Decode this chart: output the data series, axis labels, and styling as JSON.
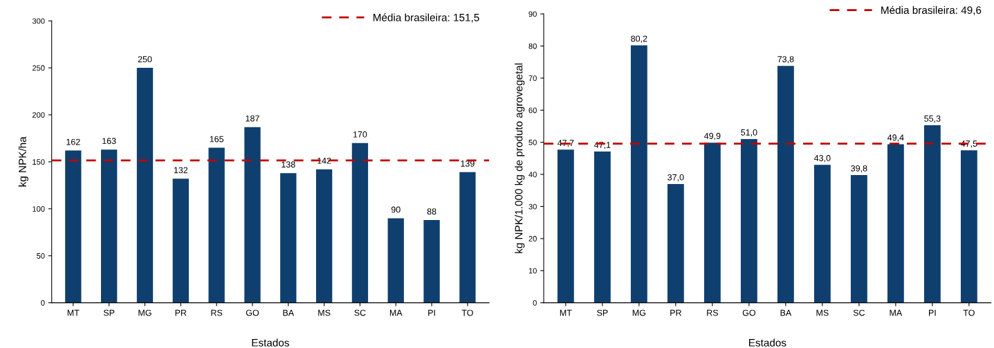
{
  "chart_data": [
    {
      "type": "bar",
      "xlabel": "Estados",
      "ylabel": "kg NPK/ha",
      "categories": [
        "MT",
        "SP",
        "MG",
        "PR",
        "RS",
        "GO",
        "BA",
        "MS",
        "SC",
        "MA",
        "PI",
        "TO"
      ],
      "values": [
        162,
        163,
        250,
        132,
        165,
        187,
        138,
        142,
        170,
        90,
        88,
        139
      ],
      "color": "#0f3f6e",
      "data_labels": true,
      "ylim": [
        0,
        300
      ],
      "yticks": [
        0,
        50,
        100,
        150,
        200,
        250,
        300
      ],
      "grid": false,
      "legend": "top right",
      "ref_lines": [
        {
          "axis": "y",
          "value": 151.5,
          "label": "Média brasileira: 151,5",
          "color": "#c00000",
          "line_style": "dashed"
        }
      ]
    },
    {
      "type": "bar",
      "xlabel": "Estados",
      "ylabel": "kg NPK/1.000 kg de produto agrovegetal",
      "categories": [
        "MT",
        "SP",
        "MG",
        "PR",
        "RS",
        "GO",
        "BA",
        "MS",
        "SC",
        "MA",
        "PI",
        "TO"
      ],
      "values": [
        47.7,
        47.1,
        80.2,
        37.0,
        49.9,
        51.0,
        73.8,
        43.0,
        39.8,
        49.4,
        55.3,
        47.5
      ],
      "value_labels": [
        "47,7",
        "47,1",
        "80,2",
        "37,0",
        "49,9",
        "51,0",
        "73,8",
        "43,0",
        "39,8",
        "49,4",
        "55,3",
        "47,5"
      ],
      "color": "#0f3f6e",
      "ylim": [
        0,
        90
      ],
      "yticks": [
        0,
        10,
        20,
        30,
        40,
        50,
        60,
        70,
        80,
        90
      ],
      "grid": false,
      "legend": "top right",
      "ref_lines": [
        {
          "axis": "y",
          "value": 49.6,
          "label": "Média brasileira: 49,6",
          "color": "#c00000",
          "line_style": "dashed"
        }
      ]
    }
  ]
}
